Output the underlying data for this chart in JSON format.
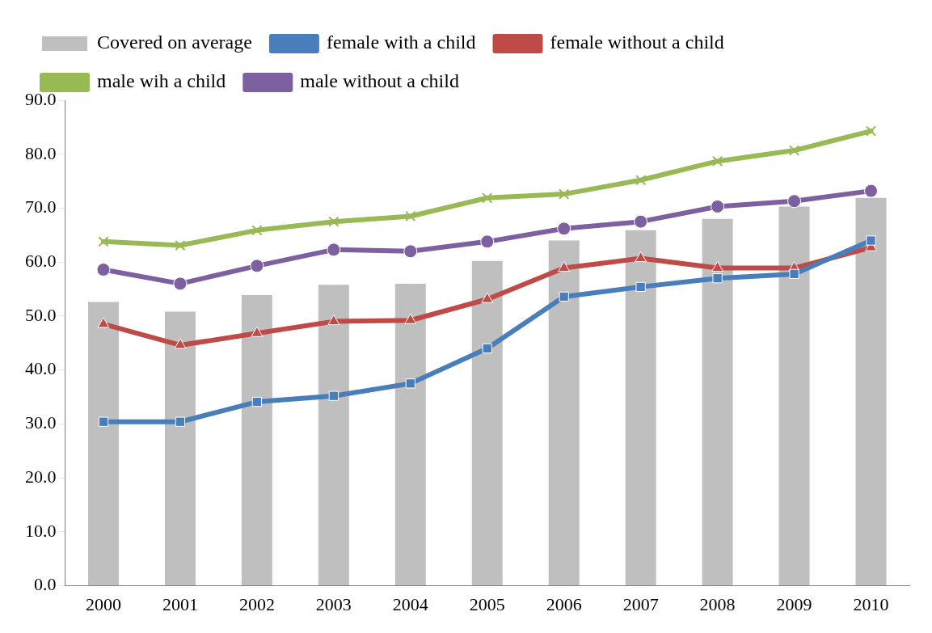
{
  "chart_data": {
    "type": "bar",
    "categories": [
      "2000",
      "2001",
      "2002",
      "2003",
      "2004",
      "2005",
      "2006",
      "2007",
      "2008",
      "2009",
      "2010"
    ],
    "series": [
      {
        "name": "Covered on average",
        "color": "#bfbfbf",
        "values": [
          52.6,
          50.8,
          53.9,
          55.8,
          56.0,
          60.2,
          64.0,
          65.9,
          68.0,
          70.3,
          71.9
        ]
      },
      {
        "name": "female with a child",
        "type": "line",
        "marker": "square",
        "color": "#4a7ebb",
        "values": [
          30.4,
          30.4,
          34.1,
          35.2,
          37.5,
          44.0,
          53.6,
          55.4,
          57.0,
          57.8,
          64.0
        ]
      },
      {
        "name": "female without a child",
        "type": "line",
        "marker": "triangle",
        "color": "#be4b48",
        "values": [
          48.5,
          44.6,
          46.8,
          49.0,
          49.2,
          53.1,
          58.9,
          60.7,
          58.9,
          58.9,
          62.7
        ]
      },
      {
        "name": "male wih a child",
        "type": "line",
        "marker": "cross",
        "color": "#98b954",
        "values": [
          63.8,
          63.1,
          65.9,
          67.5,
          68.5,
          71.9,
          72.6,
          75.2,
          78.7,
          80.7,
          84.3
        ]
      },
      {
        "name": "male without a child",
        "type": "line",
        "marker": "circle",
        "color": "#7d60a0",
        "values": [
          58.6,
          56.0,
          59.3,
          62.3,
          62.0,
          63.8,
          66.2,
          67.5,
          70.3,
          71.3,
          73.2
        ]
      }
    ],
    "ylim": [
      0,
      90
    ],
    "yticks": [
      {
        "value": 0,
        "label": "0.0"
      },
      {
        "value": 10,
        "label": "10.0"
      },
      {
        "value": 20,
        "label": "20.0"
      },
      {
        "value": 30,
        "label": "30.0"
      },
      {
        "value": 40,
        "label": "40.0"
      },
      {
        "value": 50,
        "label": "50.0"
      },
      {
        "value": 60,
        "label": "60.0"
      },
      {
        "value": 70,
        "label": "70.0"
      },
      {
        "value": 80,
        "label": "80.0"
      },
      {
        "value": 90,
        "label": "90.0"
      }
    ],
    "legend": "top",
    "grid": false
  }
}
